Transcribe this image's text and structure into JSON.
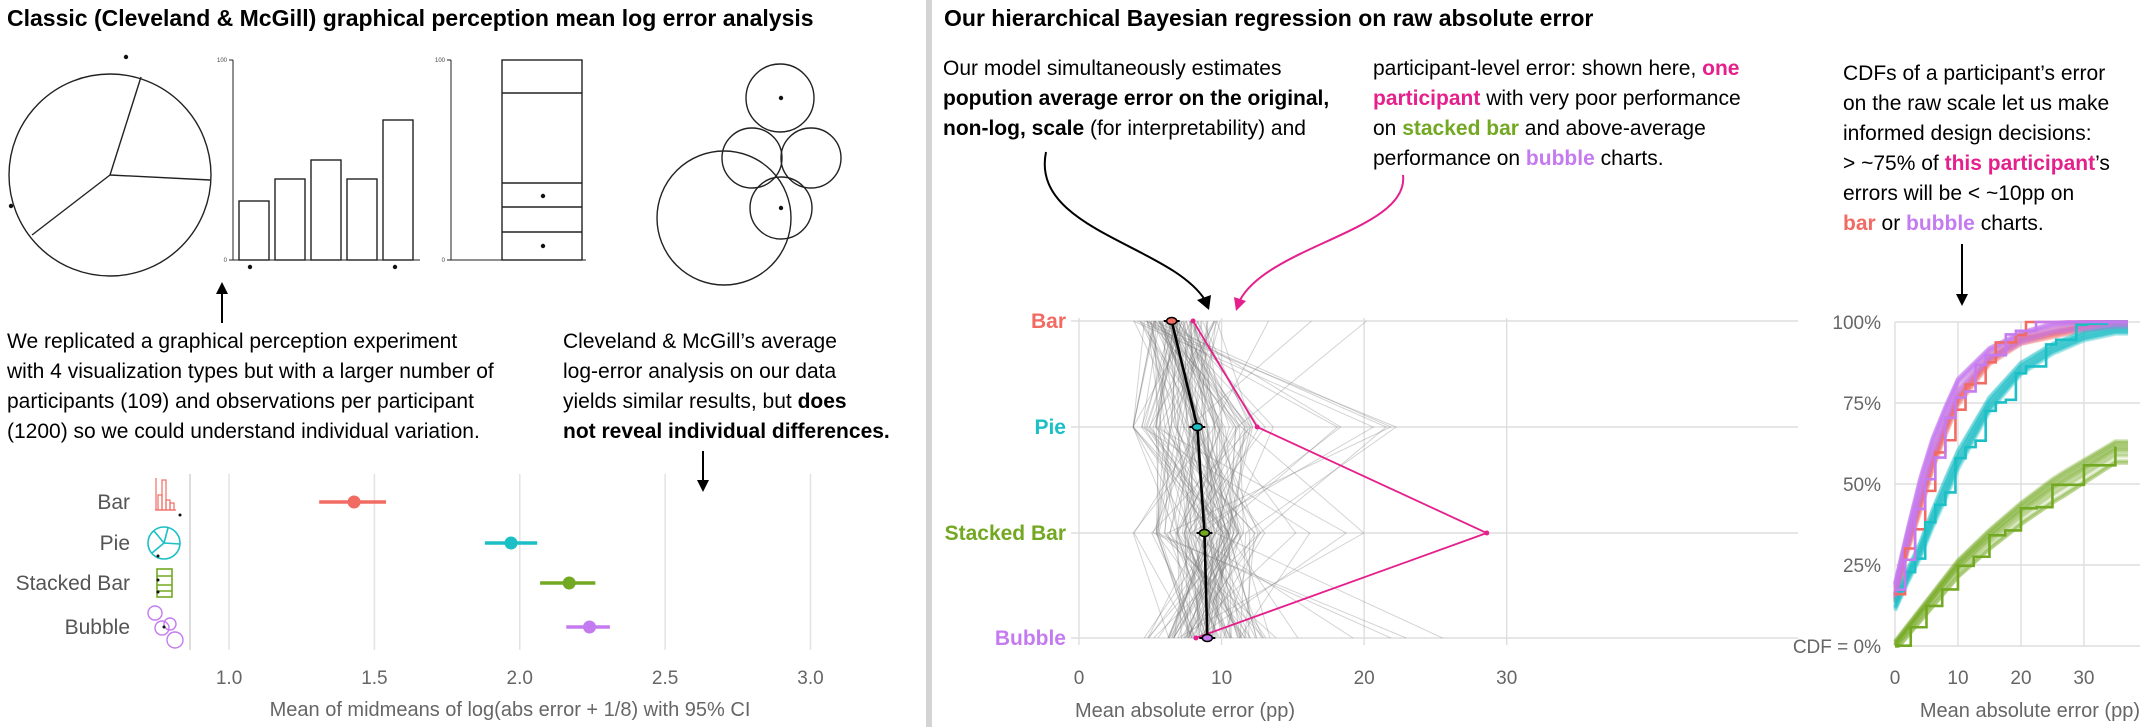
{
  "colors": {
    "bar": "#f26b63",
    "pie": "#1bbfc6",
    "stacked": "#73a822",
    "bubble": "#c57bf0",
    "highlight": "#e51f8b",
    "grey": "#888888"
  },
  "left": {
    "title": "Classic (Cleveland & McGill) graphical perception mean log error analysis",
    "stim_tick_top": "100",
    "stim_tick_zero": "0",
    "para1": [
      "We replicated a graphical perception experiment",
      "with 4 visualization types but with a larger number of",
      "participants (109) and observations per participant",
      "(1200) so we could understand individual variation."
    ],
    "para2": [
      [
        {
          "t": "Cleveland & McGill’s average",
          "b": false
        }
      ],
      [
        {
          "t": "log-error analysis on our data",
          "b": false
        }
      ],
      [
        {
          "t": "yields similar results, but ",
          "b": false
        },
        {
          "t": "does",
          "b": true
        }
      ],
      [
        {
          "t": "not reveal individual differences.",
          "b": true
        }
      ]
    ]
  },
  "right": {
    "title": "Our hierarchical Bayesian regression on raw absolute error",
    "para1": [
      [
        {
          "t": "Our model simultaneously estimates",
          "b": false
        }
      ],
      [
        {
          "t": "popution average error on the original,",
          "b": true
        }
      ],
      [
        {
          "t": "non-log, scale",
          "b": true
        },
        {
          "t": " (for interpretability) and",
          "b": false
        }
      ]
    ],
    "para2": [
      [
        {
          "t": "participant-level error: shown here, ",
          "b": false
        },
        {
          "t": "one",
          "b": true,
          "c": "highlight"
        }
      ],
      [
        {
          "t": "participant",
          "b": true,
          "c": "highlight"
        },
        {
          "t": " with very poor performance",
          "b": false
        }
      ],
      [
        {
          "t": "on ",
          "b": false
        },
        {
          "t": "stacked bar",
          "b": true,
          "c": "stacked"
        },
        {
          "t": " and above-average",
          "b": false
        }
      ],
      [
        {
          "t": "performance on ",
          "b": false
        },
        {
          "t": "bubble",
          "b": true,
          "c": "bubble"
        },
        {
          "t": " charts.",
          "b": false
        }
      ]
    ],
    "para3": [
      [
        {
          "t": "CDFs of a participant’s error",
          "b": false
        }
      ],
      [
        {
          "t": "on the raw scale let us make",
          "b": false
        }
      ],
      [
        {
          "t": "informed design decisions:",
          "b": false
        }
      ],
      [
        {
          "t": "> ~75% of ",
          "b": false
        },
        {
          "t": "this participant",
          "b": true,
          "c": "highlight"
        },
        {
          "t": "’s",
          "b": false
        }
      ],
      [
        {
          "t": "errors will be < ~10pp on",
          "b": false
        }
      ],
      [
        {
          "t": "bar",
          "b": true,
          "c": "bar"
        },
        {
          "t": " or ",
          "b": false
        },
        {
          "t": "bubble",
          "b": true,
          "c": "bubble"
        },
        {
          "t": " charts.",
          "b": false
        }
      ]
    ]
  },
  "chart_data": [
    {
      "type": "scatter",
      "title": "",
      "xlabel": "Mean of midmeans of log(abs error + 1/8) with 95% CI",
      "ylabel": "",
      "xlim": [
        0.9,
        3.05
      ],
      "xticks": [
        1.0,
        1.5,
        2.0,
        2.5,
        3.0
      ],
      "xtick_labels": [
        "1.0",
        "1.5",
        "2.0",
        "2.5",
        "3.0"
      ],
      "categories": [
        "Bar",
        "Pie",
        "Stacked Bar",
        "Bubble"
      ],
      "estimates": [
        1.43,
        1.97,
        2.17,
        2.24
      ],
      "ci_low": [
        1.31,
        1.88,
        2.07,
        2.16
      ],
      "ci_high": [
        1.54,
        2.06,
        2.26,
        2.31
      ],
      "grid": true
    },
    {
      "type": "line",
      "title": "",
      "xlabel": "Mean absolute error (pp)",
      "ylabel": "",
      "xlim": [
        0,
        35
      ],
      "xticks": [
        0,
        10,
        20,
        30
      ],
      "xtick_labels": [
        "0",
        "10",
        "20",
        "30"
      ],
      "categories": [
        "Bar",
        "Pie",
        "Stacked Bar",
        "Bubble"
      ],
      "population_mean": [
        6.5,
        8.3,
        8.8,
        9.0
      ],
      "highlighted_participant": [
        8.0,
        12.5,
        28.6,
        8.2
      ],
      "background_participants": "109 participants shown as thin grey lines"
    },
    {
      "type": "line",
      "title": "",
      "xlabel": "Mean absolute error (pp)",
      "ylabel": "",
      "xlim": [
        0,
        37
      ],
      "ylim": [
        0,
        1
      ],
      "xticks": [
        0,
        10,
        20,
        30
      ],
      "xtick_labels": [
        "0",
        "10",
        "20",
        "30"
      ],
      "yticks": [
        0,
        0.25,
        0.5,
        0.75,
        1
      ],
      "ytick_labels": [
        "CDF = 0%",
        "25%",
        "50%",
        "75%",
        "100%"
      ],
      "series": [
        {
          "name": "Bar",
          "color": "bar",
          "x": [
            0,
            2,
            4,
            6,
            8,
            10,
            15,
            20,
            25,
            30,
            35
          ],
          "y": [
            0.16,
            0.32,
            0.45,
            0.58,
            0.68,
            0.77,
            0.89,
            0.95,
            0.97,
            0.99,
            1.0
          ]
        },
        {
          "name": "Pie",
          "color": "pie",
          "x": [
            0,
            2,
            4,
            6,
            8,
            10,
            15,
            20,
            25,
            30,
            35
          ],
          "y": [
            0.13,
            0.22,
            0.3,
            0.4,
            0.49,
            0.58,
            0.75,
            0.86,
            0.92,
            0.96,
            0.98
          ]
        },
        {
          "name": "Stacked Bar",
          "color": "stacked",
          "x": [
            0,
            5,
            10,
            15,
            20,
            25,
            30,
            35
          ],
          "y": [
            0.0,
            0.12,
            0.24,
            0.33,
            0.41,
            0.48,
            0.54,
            0.6
          ]
        },
        {
          "name": "Bubble",
          "color": "bubble",
          "x": [
            0,
            2,
            4,
            6,
            8,
            10,
            15,
            20,
            25,
            30,
            35
          ],
          "y": [
            0.17,
            0.33,
            0.48,
            0.61,
            0.71,
            0.8,
            0.9,
            0.95,
            0.98,
            0.99,
            1.0
          ]
        }
      ]
    }
  ]
}
